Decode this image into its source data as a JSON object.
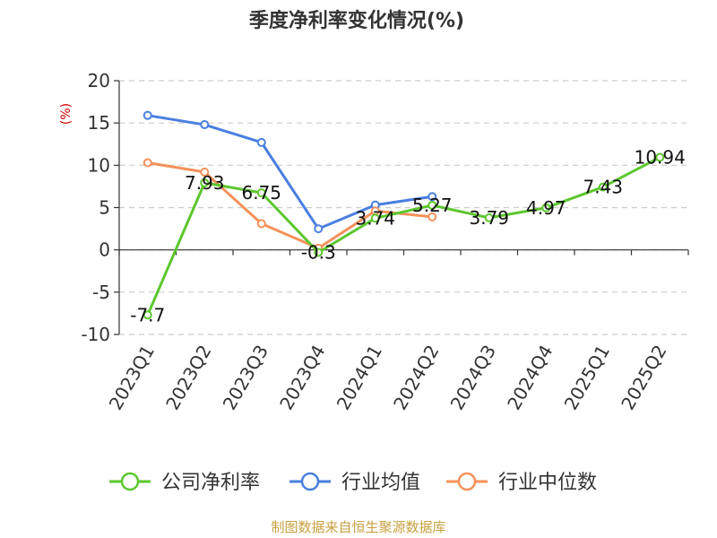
{
  "chart_data": {
    "type": "line",
    "title": "季度净利率变化情况(%)",
    "ylabel": "(%)",
    "ylim": [
      -10,
      20
    ],
    "yticks": [
      20,
      15,
      10,
      5,
      0,
      -5,
      -10
    ],
    "categories": [
      "2023Q1",
      "2023Q2",
      "2023Q3",
      "2023Q4",
      "2024Q1",
      "2024Q2",
      "2024Q3",
      "2024Q4",
      "2025Q1",
      "2025Q2"
    ],
    "grid": true,
    "legend_position": "bottom",
    "series": [
      {
        "name": "公司净利率",
        "color": "#5cc72e",
        "values": [
          -7.7,
          7.93,
          6.75,
          -0.3,
          3.74,
          5.27,
          3.79,
          4.97,
          7.43,
          10.94
        ],
        "labels": [
          "-7.7",
          "7.93",
          "6.75",
          "-0.3",
          "3.74",
          "5.27",
          "3.79",
          "4.97",
          "7.43",
          "10.94"
        ]
      },
      {
        "name": "行业均值",
        "color": "#4a7fe0",
        "values": [
          15.9,
          14.8,
          12.7,
          2.5,
          5.3,
          6.3,
          null,
          null,
          null,
          null
        ]
      },
      {
        "name": "行业中位数",
        "color": "#f5915a",
        "values": [
          10.3,
          9.2,
          3.1,
          0.2,
          4.6,
          3.9,
          null,
          null,
          null,
          null
        ]
      }
    ]
  },
  "footer": {
    "source": "制图数据来自恒生聚源数据库"
  }
}
